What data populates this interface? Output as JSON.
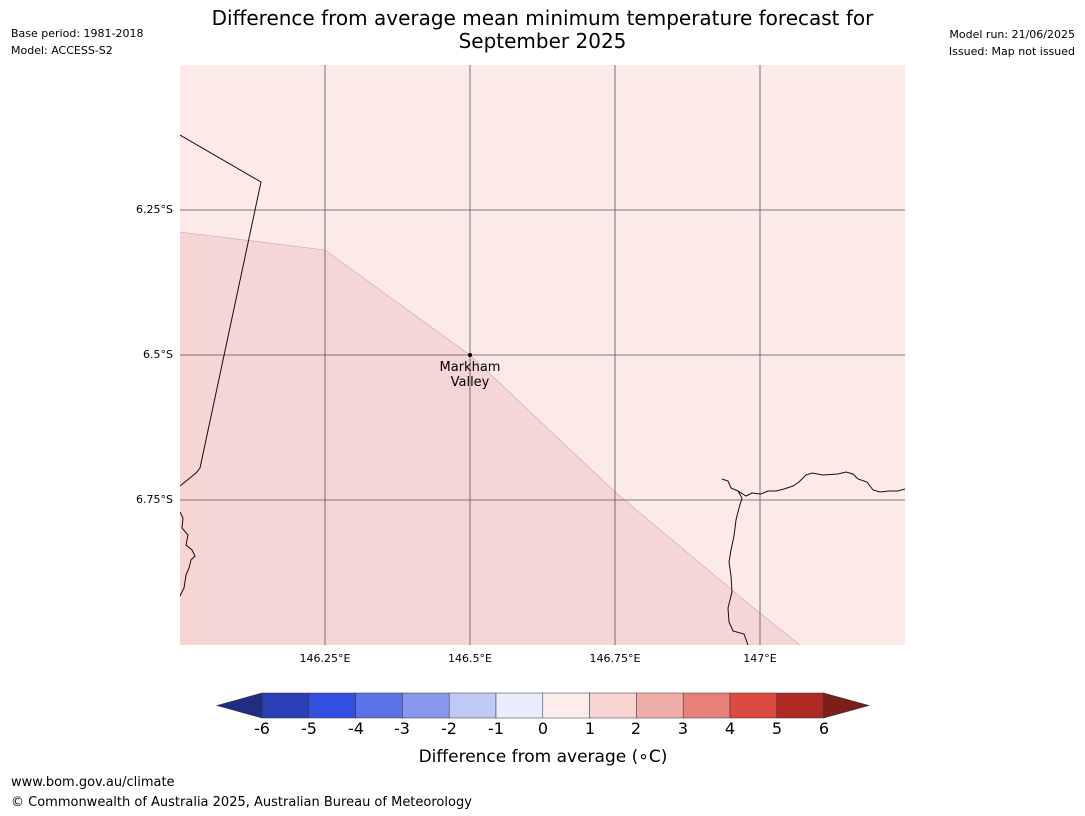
{
  "header": {
    "base_period": "Base period: 1981-2018",
    "model": "Model: ACCESS-S2",
    "model_run": "Model run: 21/06/2025",
    "issued": "Issued: Map not issued"
  },
  "title_line1": "Difference from average mean minimum temperature forecast for",
  "title_line2": "September 2025",
  "map": {
    "lat_ticks": [
      "6.25°S",
      "6.5°S",
      "6.75°S"
    ],
    "lon_ticks": [
      "146.25°E",
      "146.5°E",
      "146.75°E",
      "147°E"
    ],
    "extent": {
      "lon": [
        146.0,
        147.25
      ],
      "lat": [
        -6.0,
        -7.0
      ]
    },
    "places": [
      {
        "name": "Markham\nValley",
        "lon": 146.5,
        "lat": -6.5
      }
    ],
    "fill_colors": {
      "class_0_1": "#fbeae8",
      "class_1_2": "#f5d6d4"
    }
  },
  "colorbar": {
    "ticks": [
      "-6",
      "-5",
      "-4",
      "-3",
      "-2",
      "-1",
      "0",
      "1",
      "2",
      "3",
      "4",
      "5",
      "6"
    ],
    "colors": [
      "#1f2d85",
      "#2a3fb6",
      "#3250e0",
      "#5a72e6",
      "#8898ee",
      "#c0c8f5",
      "#e8ecfc",
      "#fcecea",
      "#f7d3d1",
      "#efaea9",
      "#e8807a",
      "#dc4a40",
      "#ae2a22",
      "#7c1e1a"
    ],
    "label": "Difference from average (∘C)"
  },
  "footer": {
    "url": "www.bom.gov.au/climate",
    "copyright": "© Commonwealth of Australia 2025, Australian Bureau of Meteorology"
  }
}
